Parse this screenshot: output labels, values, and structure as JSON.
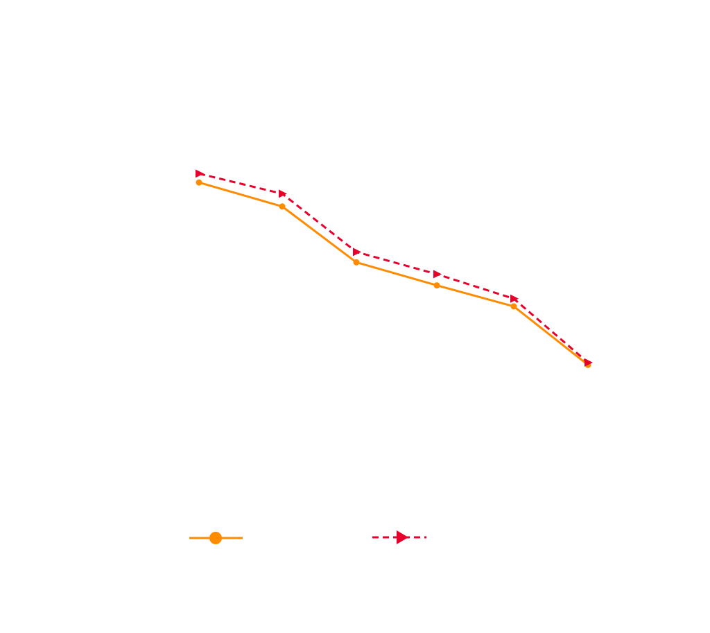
{
  "chart_data": {
    "type": "line",
    "x": [
      1,
      2,
      3,
      4,
      5,
      6
    ],
    "series": [
      {
        "values": [
          9.68,
          8.87,
          6.98,
          6.2,
          5.49,
          3.51
        ],
        "color": "#ff8c00",
        "line_style": "solid",
        "marker": "circle"
      },
      {
        "values": [
          9.98,
          9.3,
          7.33,
          6.58,
          5.75,
          3.59
        ],
        "color": "#e8002d",
        "line_style": "dashed",
        "marker": "triangle-right"
      }
    ],
    "ylim": [
      0,
      14
    ],
    "axes_visible": false,
    "grid": false,
    "legend": "bottom-center"
  }
}
